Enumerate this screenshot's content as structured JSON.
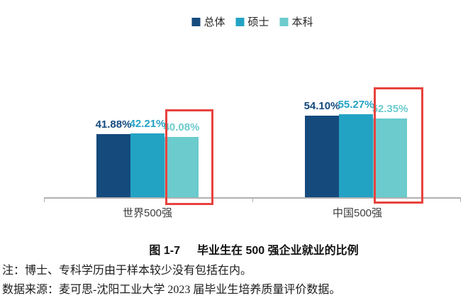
{
  "chart_data": {
    "type": "bar",
    "categories": [
      "世界500强",
      "中国500强"
    ],
    "series": [
      {
        "name": "总体",
        "color": "#154a7d",
        "values": [
          41.88,
          54.1
        ],
        "labels": [
          "41.88%",
          "54.10%"
        ]
      },
      {
        "name": "硕士",
        "color": "#23a3c4",
        "values": [
          42.21,
          55.27
        ],
        "labels": [
          "42.21%",
          "55.27%"
        ]
      },
      {
        "name": "本科",
        "color": "#6bcbcd",
        "values": [
          40.08,
          52.35
        ],
        "labels": [
          "40.08%",
          "52.35%"
        ]
      }
    ],
    "ylim": [
      0,
      60
    ],
    "grid": false,
    "legend_position": "top",
    "axis_color": "#b0b0b0",
    "highlight": {
      "series": "本科",
      "color": "#e8423e"
    }
  },
  "figure": {
    "caption": {
      "label": "图 1-7",
      "text": "毕业生在 500 强企业就业的比例"
    },
    "notes": {
      "line1": "注：博士、专科学历由于样本较少没有包括在内。",
      "line2": "数据来源：麦可思-沈阳工业大学 2023 届毕业生培养质量评价数据。"
    }
  }
}
